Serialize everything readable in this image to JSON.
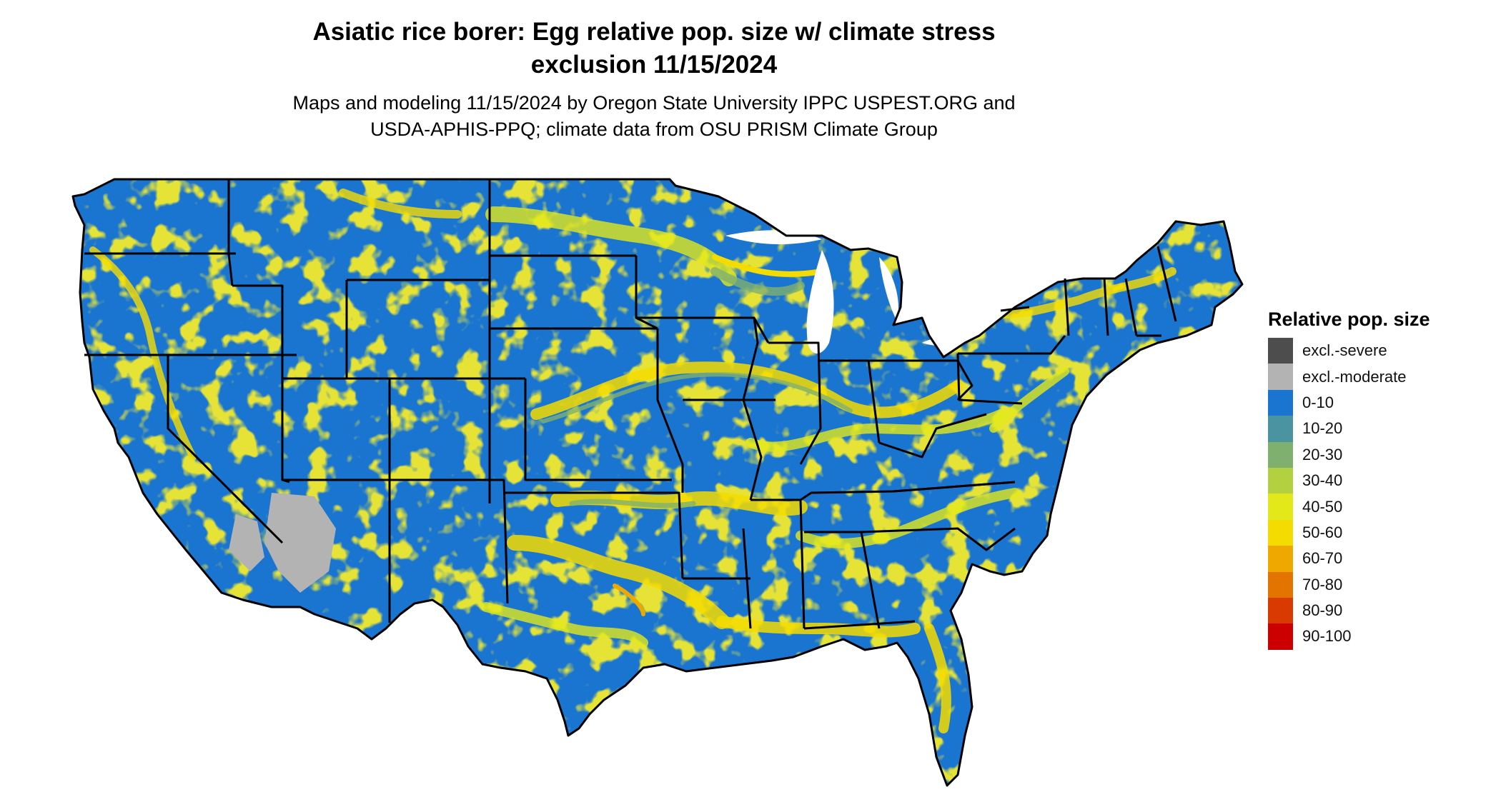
{
  "header": {
    "title_line1": "Asiatic rice borer: Egg relative pop. size w/ climate stress",
    "title_line2": "exclusion 11/15/2024",
    "subtitle_line1": "Maps and modeling 11/15/2024 by Oregon State University IPPC USPEST.ORG and",
    "subtitle_line2": "USDA-APHIS-PPQ; climate data from OSU PRISM Climate Group"
  },
  "legend": {
    "title": "Relative pop. size",
    "items": [
      {
        "label": "excl.-severe",
        "color": "#4d4d4d"
      },
      {
        "label": "excl.-moderate",
        "color": "#b3b3b3"
      },
      {
        "label": "0-10",
        "color": "#1a75d1"
      },
      {
        "label": "10-20",
        "color": "#4a93a0"
      },
      {
        "label": "20-30",
        "color": "#80b06e"
      },
      {
        "label": "30-40",
        "color": "#b2d040"
      },
      {
        "label": "40-50",
        "color": "#e2e81a"
      },
      {
        "label": "50-60",
        "color": "#f5dc00"
      },
      {
        "label": "60-70",
        "color": "#eea800"
      },
      {
        "label": "70-80",
        "color": "#e37400"
      },
      {
        "label": "80-90",
        "color": "#d83a00"
      },
      {
        "label": "90-100",
        "color": "#cc0000"
      }
    ]
  },
  "map": {
    "region": "conterminous-united-states",
    "base_color": "#1a75d1",
    "border_color": "#000000",
    "highlight_colors": [
      "#f5dc00",
      "#e2e81a",
      "#80b06e",
      "#b3b3b3",
      "#eea800"
    ]
  }
}
